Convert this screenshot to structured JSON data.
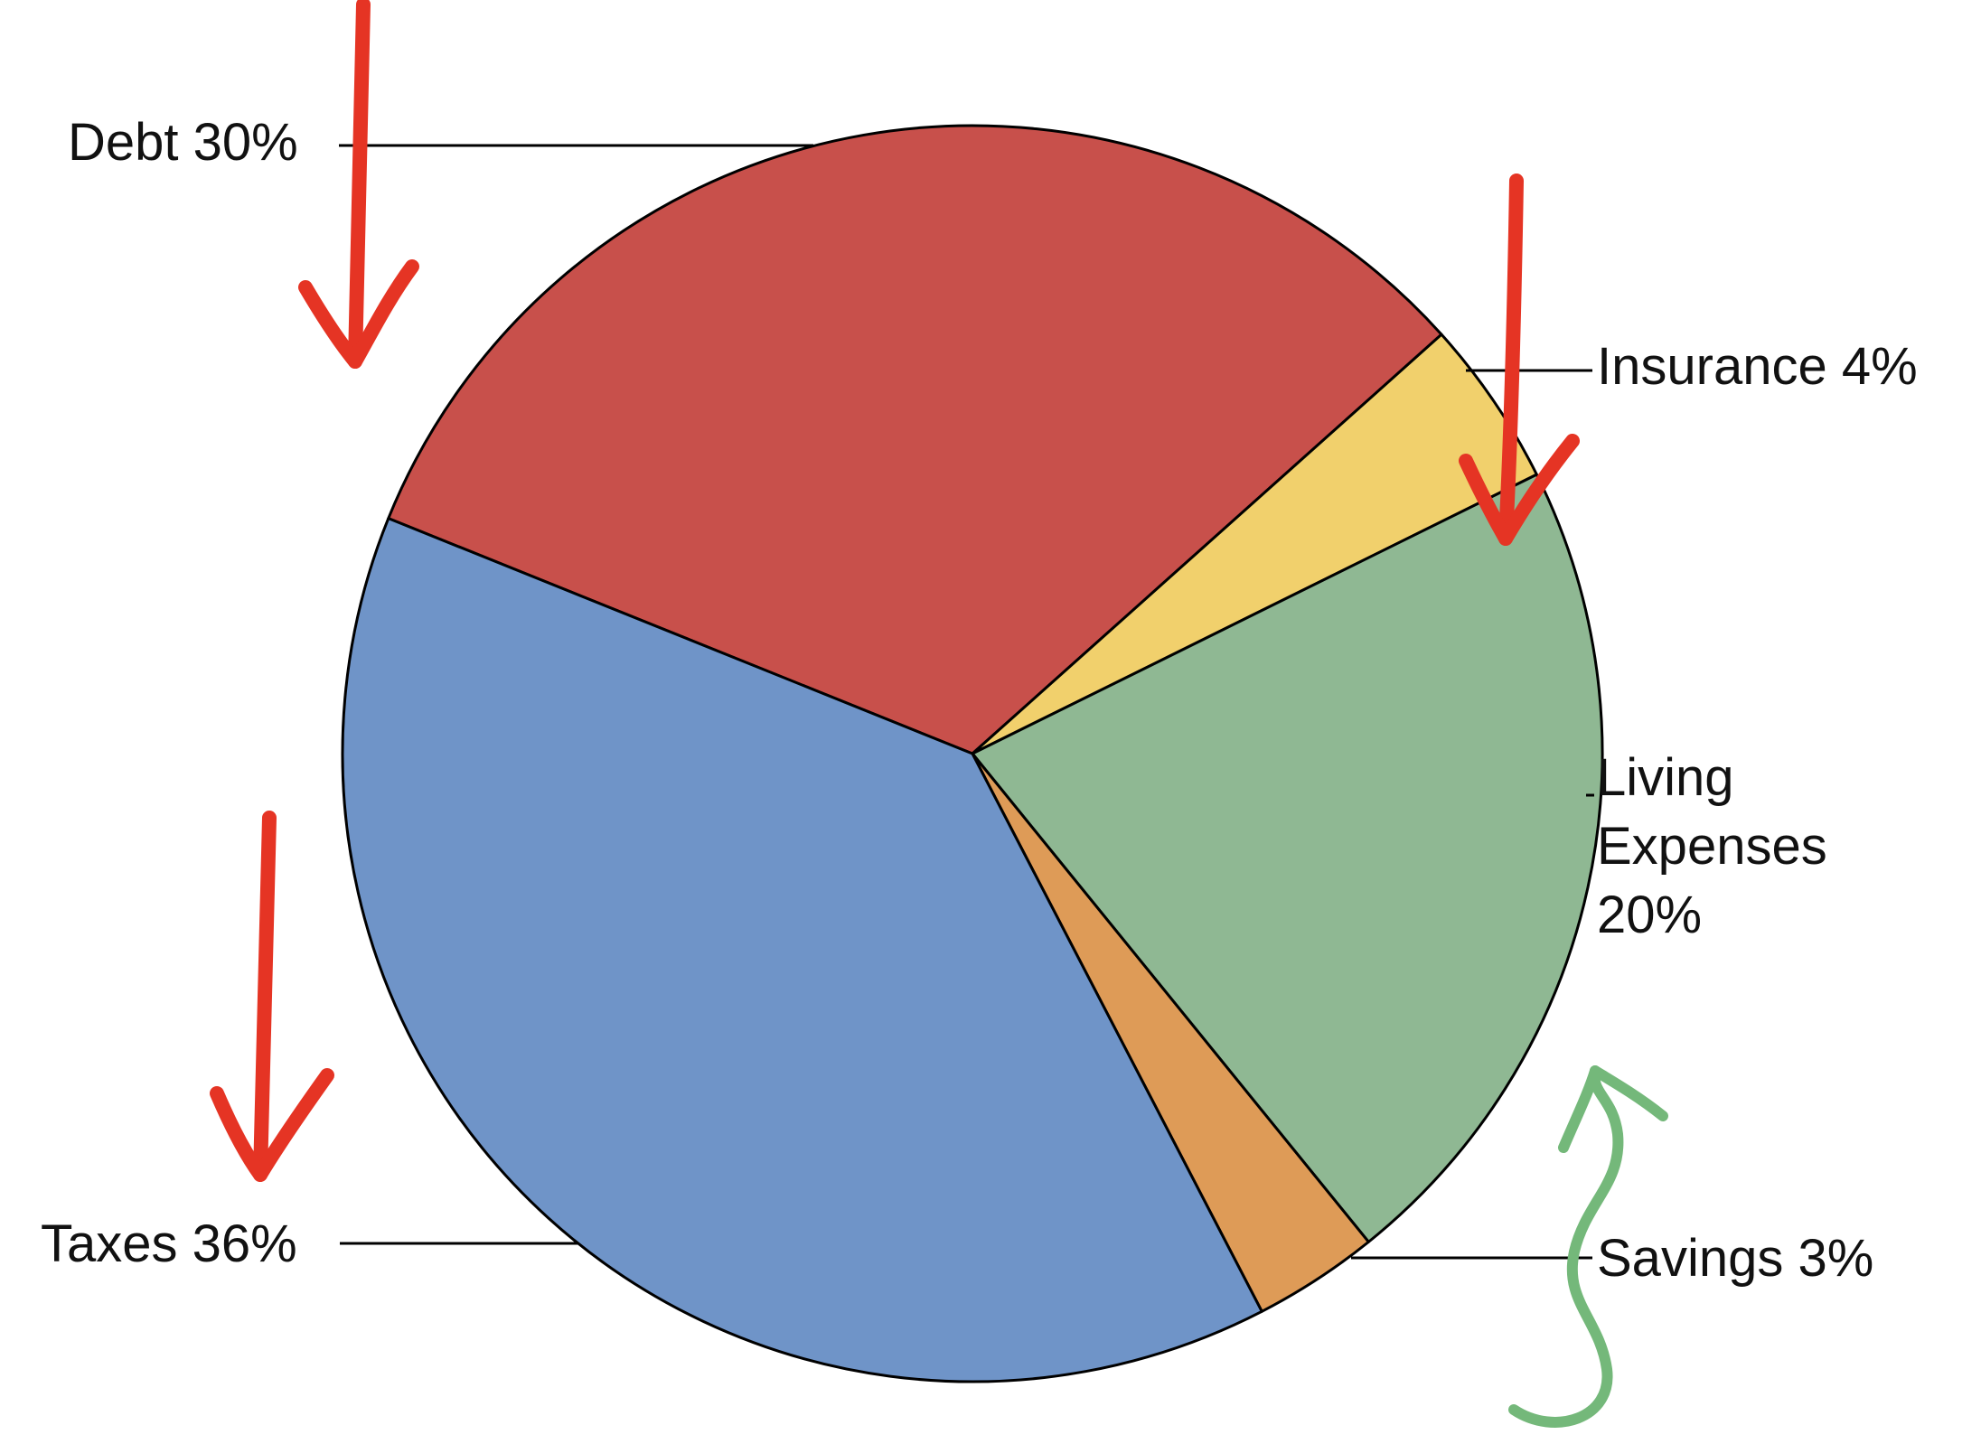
{
  "chart_data": {
    "type": "pie",
    "title": "",
    "slices": [
      {
        "key": "debt",
        "label_lines": [
          "Debt 30%"
        ],
        "value": 30,
        "color": "#C8504B"
      },
      {
        "key": "insurance",
        "label_lines": [
          "Insurance 4%"
        ],
        "value": 4,
        "color": "#F1D06C"
      },
      {
        "key": "living-expenses",
        "label_lines": [
          "Living",
          "Expenses",
          "20%"
        ],
        "value": 20,
        "color": "#8FB893"
      },
      {
        "key": "savings",
        "label_lines": [
          "Savings 3%"
        ],
        "value": 3,
        "color": "#DE9B57"
      },
      {
        "key": "taxes",
        "label_lines": [
          "Taxes 36%"
        ],
        "value": 36,
        "color": "#6F94C8"
      }
    ],
    "legend": "none",
    "annotations": {
      "arrows_color": "#E53424",
      "squiggle_color": "#74B87A"
    }
  }
}
